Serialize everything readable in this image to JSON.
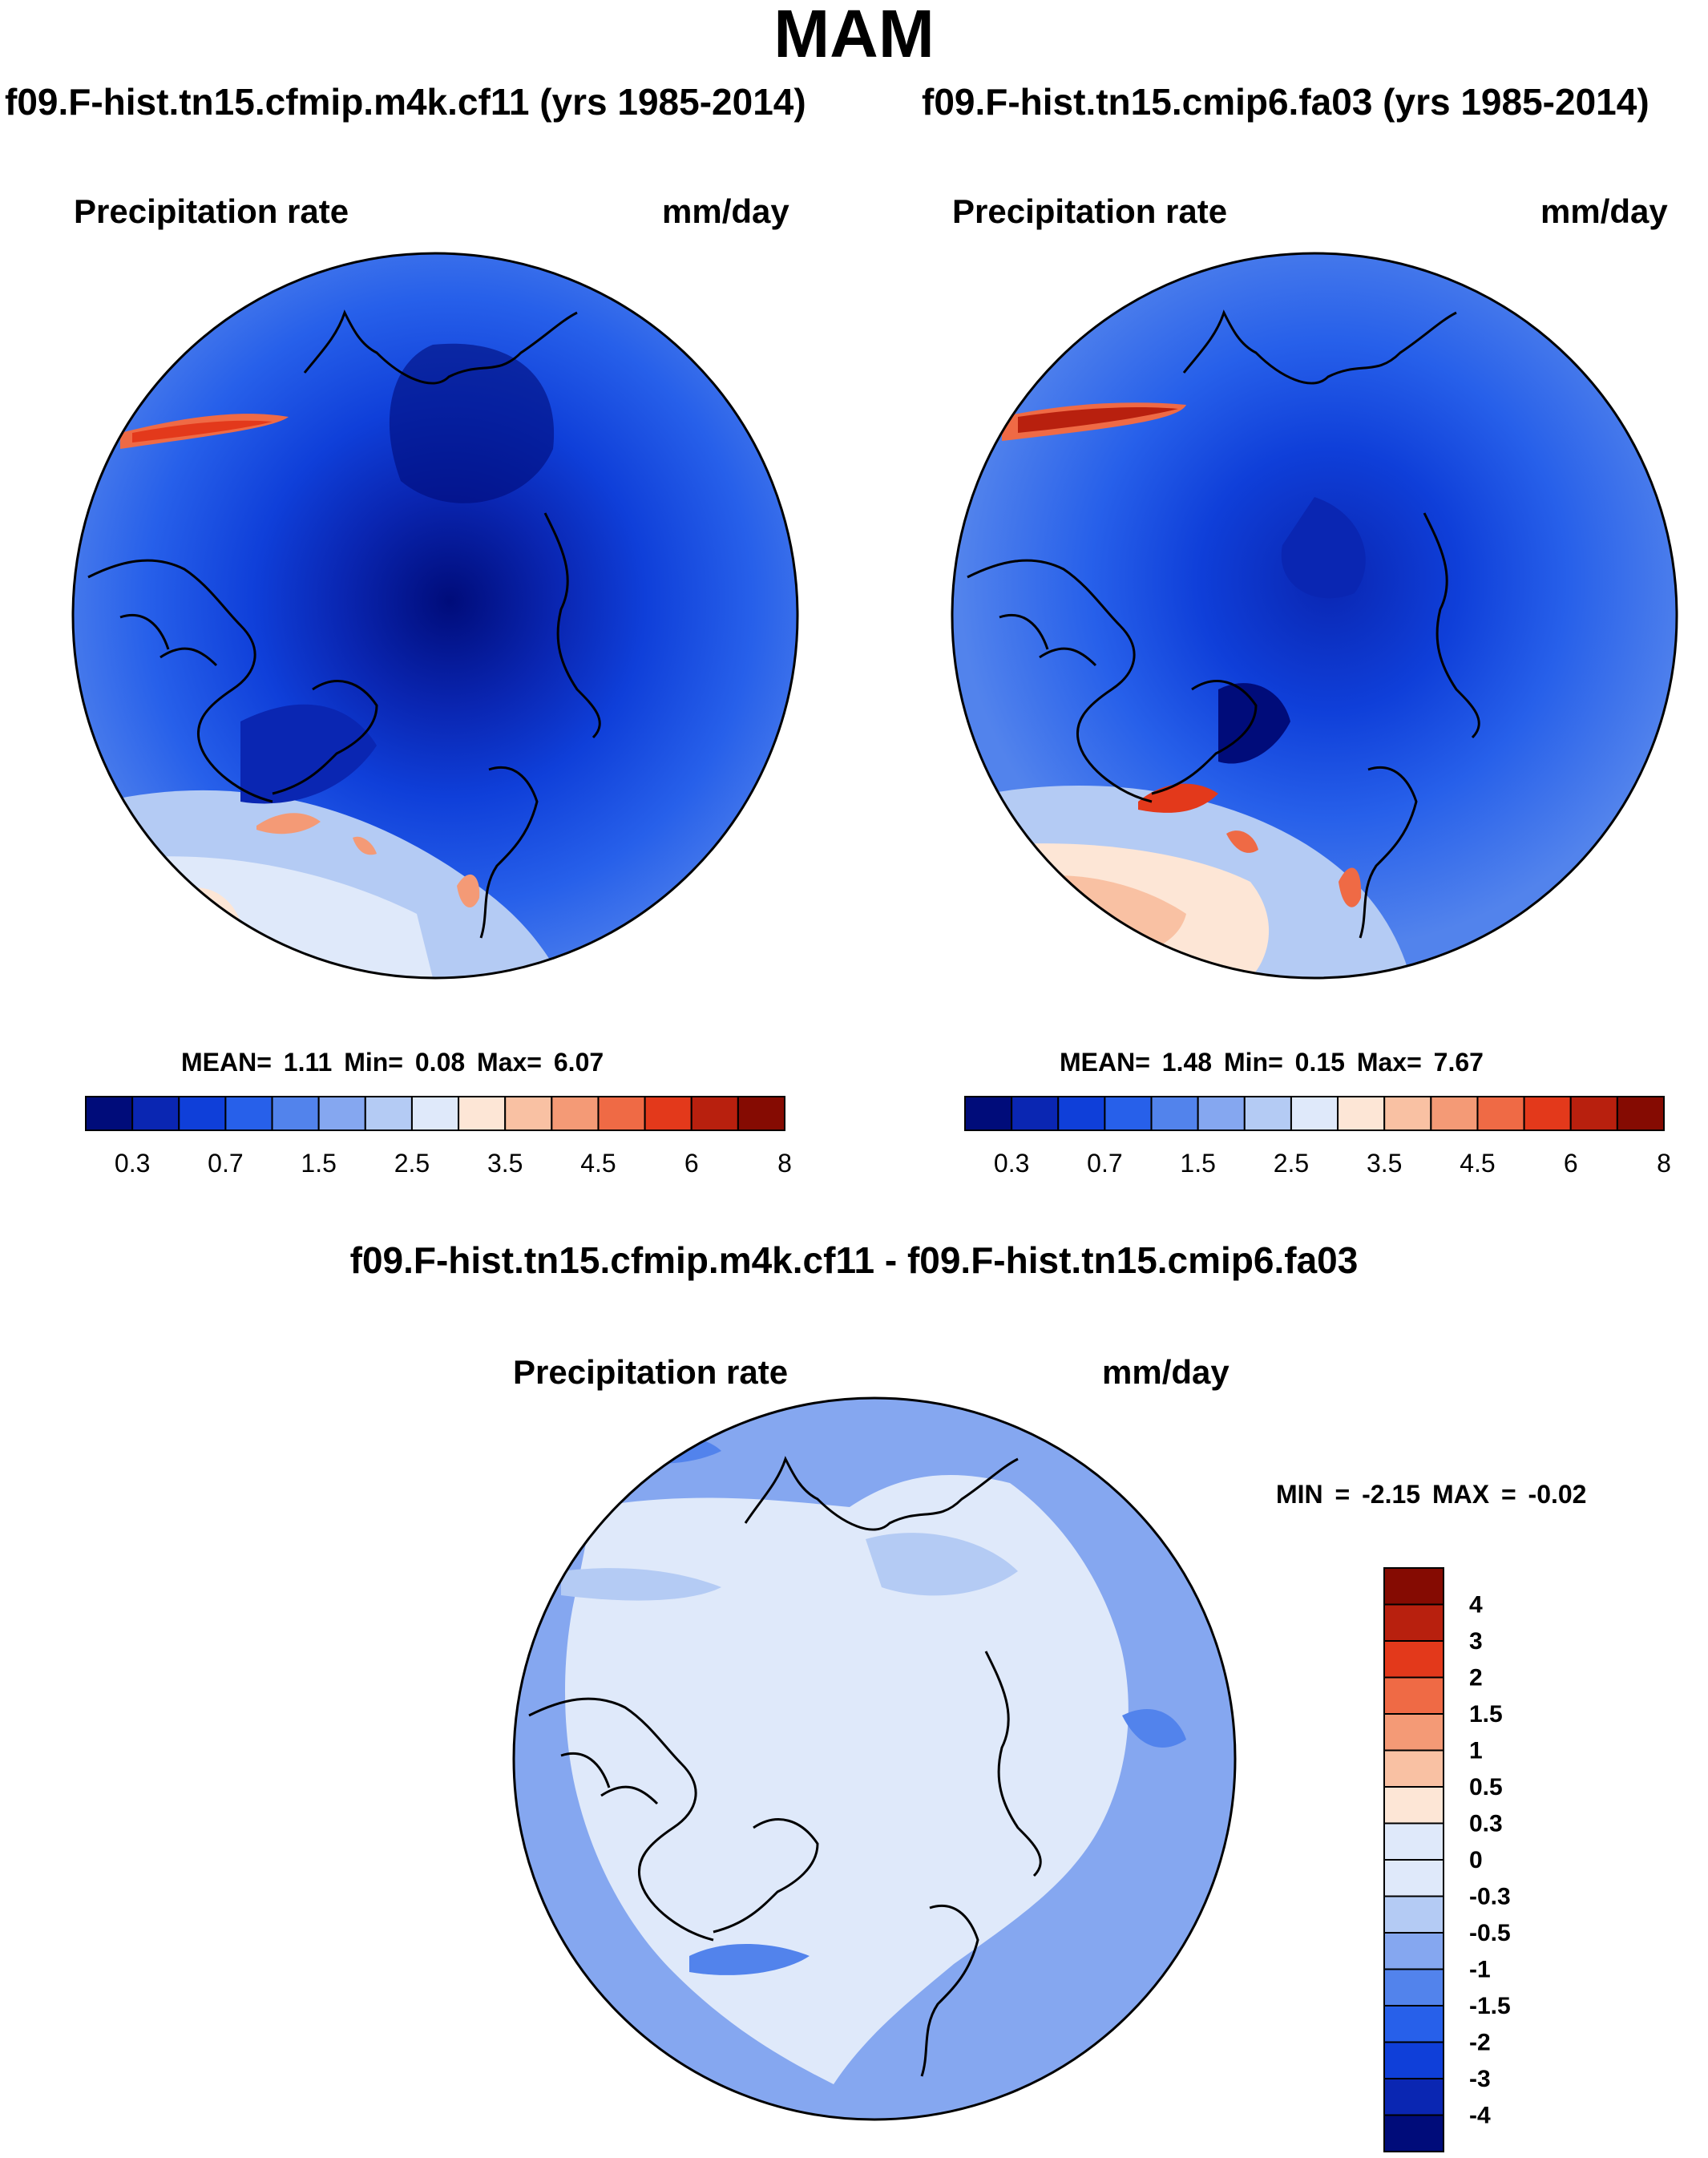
{
  "title": "MAM",
  "palette": [
    "#000c7a",
    "#0a26b2",
    "#0f3fd9",
    "#2760ea",
    "#5283ec",
    "#85a7f0",
    "#b4cbf4",
    "#dfe9fa",
    "#fde6d6",
    "#f9c1a3",
    "#f49a76",
    "#ef6a45",
    "#e3391b",
    "#b8200e",
    "#850b02"
  ],
  "panels": [
    {
      "title": "f09.F-hist.tn15.cfmip.m4k.cf11 (yrs 1985-2014)",
      "field": "Precipitation rate",
      "units": "mm/day",
      "stats": "MEAN=  1.11  Min=  0.08  Max=  6.07",
      "mean": 1.11,
      "min": 0.08,
      "max": 6.07,
      "colorbar_labels": [
        "0.3",
        "0.7",
        "1.5",
        "2.5",
        "3.5",
        "4.5",
        "6",
        "8"
      ]
    },
    {
      "title": "f09.F-hist.tn15.cmip6.fa03 (yrs 1985-2014)",
      "field": "Precipitation rate",
      "units": "mm/day",
      "stats": "MEAN=  1.48  Min=  0.15  Max=  7.67",
      "mean": 1.48,
      "min": 0.15,
      "max": 7.67,
      "colorbar_labels": [
        "0.3",
        "0.7",
        "1.5",
        "2.5",
        "3.5",
        "4.5",
        "6",
        "8"
      ]
    }
  ],
  "difference": {
    "title": "f09.F-hist.tn15.cfmip.m4k.cf11 - f09.F-hist.tn15.cmip6.fa03",
    "field": "Precipitation rate",
    "units": "mm/day",
    "stats": "MIN =  -2.15 MAX =  -0.02",
    "min": -2.15,
    "max": -0.02,
    "colorbar_labels": [
      "4",
      "3",
      "2",
      "1.5",
      "1",
      "0.5",
      "0.3",
      "0",
      "-0.3",
      "-0.5",
      "-1",
      "-1.5",
      "-2",
      "-3",
      "-4"
    ]
  }
}
